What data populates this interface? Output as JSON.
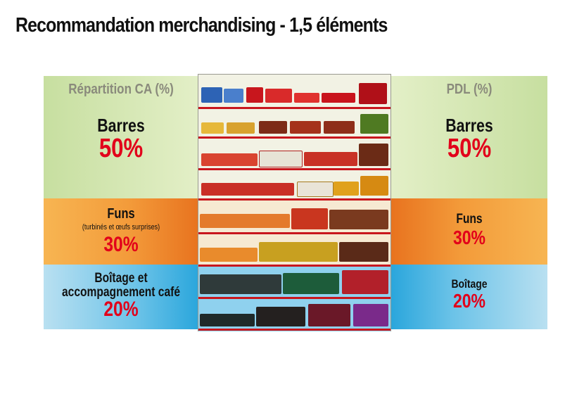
{
  "title": "Recommandation merchandising - 1,5 éléments",
  "left_header": "Répartition CA (%)",
  "right_header": "PDL (%)",
  "left": {
    "barres_label": "Barres",
    "barres_pct": "50%",
    "funs_label": "Funs",
    "funs_sub": "(turbinés et œufs surprises)",
    "funs_pct": "30%",
    "boitage_line1": "Boîtage et",
    "boitage_line2": "accompagnement café",
    "boitage_pct": "20%"
  },
  "right": {
    "barres_label": "Barres",
    "barres_pct": "50%",
    "funs_label": "Funs",
    "funs_pct": "30%",
    "boitage_label": "Boîtage",
    "boitage_pct": "20%"
  },
  "colors": {
    "accent_red": "#e2001a",
    "zone_barres": "#c7dfa0",
    "zone_funs": "#f39b3a",
    "zone_boitage": "#6cc3e8"
  }
}
